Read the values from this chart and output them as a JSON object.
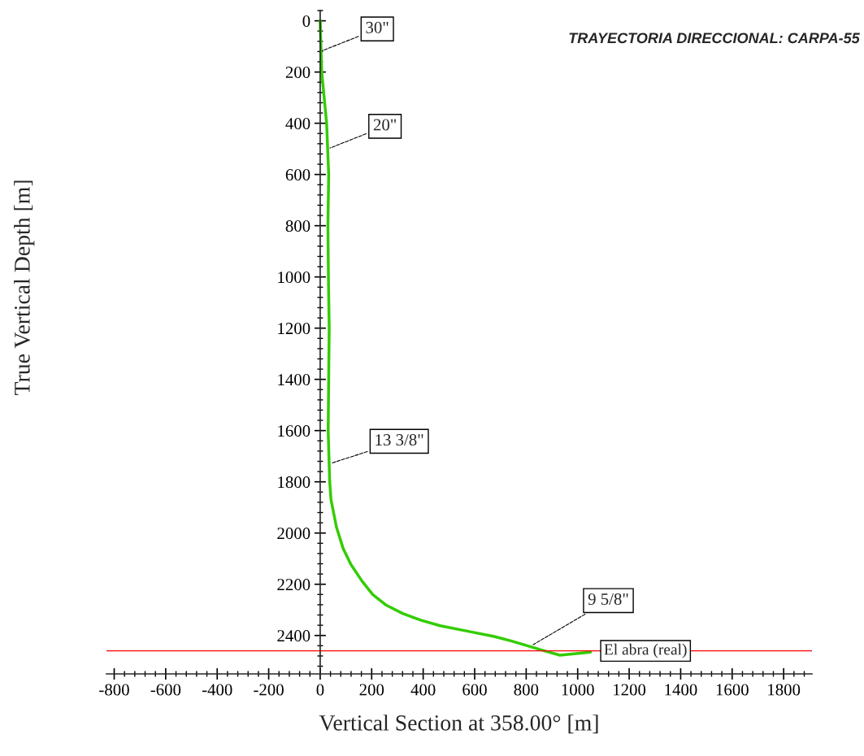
{
  "chart_data": {
    "type": "line",
    "title": "TRAYECTORIA DIRECCIONAL: CARPA-55",
    "xlabel": "Vertical Section at 358.00° [m]",
    "ylabel": "True Vertical Depth [m]",
    "series": [
      {
        "color": "#33cc00",
        "x": [
          0,
          6,
          25,
          33,
          30,
          32,
          35,
          33,
          31,
          37,
          42,
          63,
          89,
          120,
          162,
          204,
          257,
          320,
          393,
          466,
          571,
          676,
          741,
          781,
          868,
          931,
          1050
        ],
        "values": [
          0,
          200,
          400,
          600,
          800,
          1000,
          1200,
          1400,
          1600,
          1800,
          1870,
          1976,
          2060,
          2124,
          2187,
          2240,
          2282,
          2314,
          2341,
          2362,
          2383,
          2404,
          2421,
          2433,
          2459,
          2477,
          2465
        ]
      }
    ],
    "annotations": [
      {
        "text": "30\"",
        "x": 0,
        "y": 120
      },
      {
        "text": "20\"",
        "x": 30,
        "y": 500
      },
      {
        "text": "13 3/8\"",
        "x": 35,
        "y": 1730
      },
      {
        "text": "9 5/8\"",
        "x": 820,
        "y": 2440
      }
    ],
    "ref_lines": [
      {
        "axis": "y",
        "value": 2460,
        "label": "El abra (real)",
        "color": "#ff0000"
      }
    ],
    "xlim": [
      -830,
      1910
    ],
    "ylim": [
      2550,
      -40
    ],
    "xticks": [
      -800,
      -600,
      -400,
      -200,
      0,
      200,
      400,
      600,
      800,
      1000,
      1200,
      1400,
      1600,
      1800
    ],
    "yticks": [
      0,
      200,
      400,
      600,
      800,
      1000,
      1200,
      1400,
      1600,
      1800,
      2000,
      2200,
      2400
    ],
    "grid": false,
    "legend": false
  }
}
